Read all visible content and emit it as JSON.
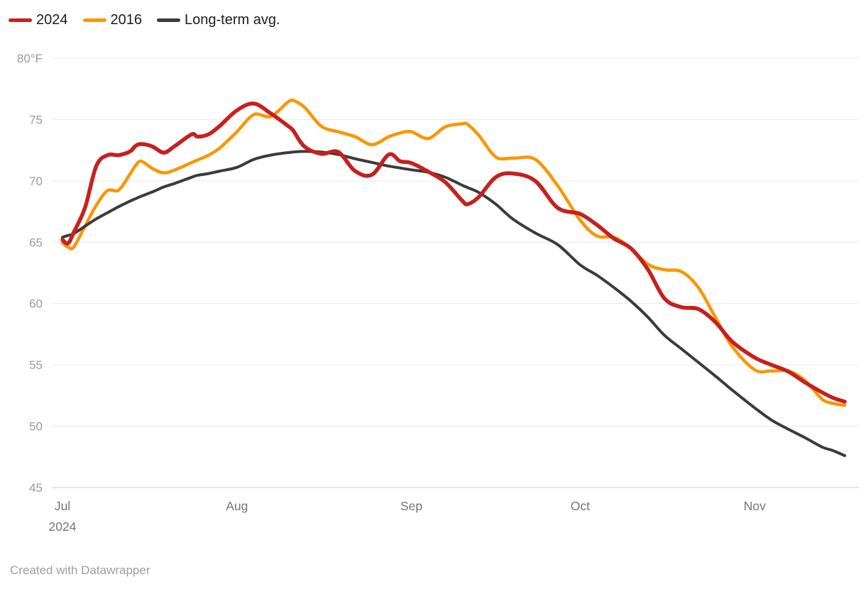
{
  "legend": {
    "items": [
      {
        "label": "2024",
        "color": "#c7201d"
      },
      {
        "label": "2016",
        "color": "#fb9500"
      },
      {
        "label": "Long-term avg.",
        "color": "#3b3b3b"
      }
    ]
  },
  "footer": {
    "attribution": "Created with Datawrapper"
  },
  "chart_data": {
    "type": "line",
    "title": "",
    "unit": "°F",
    "x_description": "days elapsed since Jul 1, 2024; series sampled at shared day offsets",
    "x_days": [
      0,
      1,
      2,
      4,
      6,
      8,
      10,
      12,
      13,
      14,
      16,
      18,
      20,
      23,
      24,
      26,
      28,
      31,
      34,
      37,
      40,
      41,
      43,
      46,
      49,
      52,
      55,
      58,
      60,
      62,
      65,
      68,
      71,
      72,
      74,
      77,
      80,
      84,
      88,
      92,
      95,
      98,
      101,
      104,
      107,
      110,
      113,
      116,
      119,
      123,
      126,
      129,
      132,
      135,
      137,
      139
    ],
    "series": [
      {
        "name": "2024",
        "color": "#c7201d",
        "stroke_width": 5.5,
        "values": [
          65.2,
          64.9,
          65.8,
          67.8,
          71.2,
          72.1,
          72.1,
          72.4,
          72.85,
          73.0,
          72.8,
          72.3,
          72.85,
          73.8,
          73.6,
          73.8,
          74.5,
          75.75,
          76.3,
          75.5,
          74.5,
          74.1,
          72.8,
          72.2,
          72.35,
          70.8,
          70.5,
          72.15,
          71.6,
          71.45,
          70.75,
          69.9,
          68.4,
          68.1,
          68.7,
          70.3,
          70.6,
          70.0,
          67.8,
          67.3,
          66.4,
          65.3,
          64.5,
          62.8,
          60.4,
          59.7,
          59.55,
          58.5,
          56.9,
          55.6,
          55.0,
          54.45,
          53.55,
          52.75,
          52.3,
          52.0
        ]
      },
      {
        "name": "2016",
        "color": "#fb9500",
        "stroke_width": 4.5,
        "values": [
          64.95,
          64.6,
          64.6,
          66.3,
          68.0,
          69.2,
          69.25,
          70.55,
          71.25,
          71.6,
          71.0,
          70.65,
          70.9,
          71.5,
          71.7,
          72.1,
          72.7,
          74.0,
          75.4,
          75.25,
          76.4,
          76.55,
          76.0,
          74.45,
          74.0,
          73.6,
          72.95,
          73.6,
          73.9,
          74.0,
          73.45,
          74.4,
          74.65,
          74.6,
          73.7,
          71.95,
          71.85,
          71.75,
          69.6,
          66.8,
          65.5,
          65.4,
          64.5,
          63.2,
          62.75,
          62.6,
          61.3,
          58.9,
          56.5,
          54.6,
          54.5,
          54.5,
          53.7,
          52.2,
          51.85,
          51.7
        ]
      },
      {
        "name": "Long-term avg.",
        "color": "#3b3b3b",
        "stroke_width": 4,
        "values": [
          65.4,
          65.55,
          65.7,
          66.3,
          66.9,
          67.4,
          67.9,
          68.35,
          68.55,
          68.75,
          69.1,
          69.5,
          69.8,
          70.3,
          70.45,
          70.6,
          70.8,
          71.1,
          71.75,
          72.1,
          72.3,
          72.35,
          72.4,
          72.35,
          72.15,
          71.8,
          71.5,
          71.2,
          71.05,
          70.9,
          70.7,
          70.3,
          69.65,
          69.45,
          69.05,
          68.1,
          66.9,
          65.75,
          64.8,
          63.15,
          62.3,
          61.3,
          60.2,
          58.9,
          57.4,
          56.3,
          55.2,
          54.1,
          52.95,
          51.5,
          50.5,
          49.75,
          49.05,
          48.3,
          48.0,
          47.6
        ]
      }
    ],
    "y_axis": {
      "range": [
        45,
        80
      ],
      "ticks": [
        {
          "value": 80,
          "label": "80°F"
        },
        {
          "value": 75,
          "label": "75"
        },
        {
          "value": 70,
          "label": "70"
        },
        {
          "value": 65,
          "label": "65"
        },
        {
          "value": 60,
          "label": "60"
        },
        {
          "value": 55,
          "label": "55"
        },
        {
          "value": 50,
          "label": "50"
        },
        {
          "value": 45,
          "label": "45"
        }
      ]
    },
    "x_axis": {
      "range_days": [
        0,
        139
      ],
      "ticks": [
        {
          "day": 0,
          "label": "Jul",
          "sublabel": "2024"
        },
        {
          "day": 31,
          "label": "Aug"
        },
        {
          "day": 62,
          "label": "Sep"
        },
        {
          "day": 92,
          "label": "Oct"
        },
        {
          "day": 123,
          "label": "Nov"
        }
      ]
    },
    "grid": "horizontal",
    "legend_position": "top-left",
    "colors": {
      "gridline": "#e9e9e9",
      "baseline": "#cccccc",
      "y_tick_text": "#9a9a9a",
      "x_tick_text": "#757575",
      "legend_text": "#1d1d1d",
      "footer_text": "#9e9e9e"
    }
  }
}
